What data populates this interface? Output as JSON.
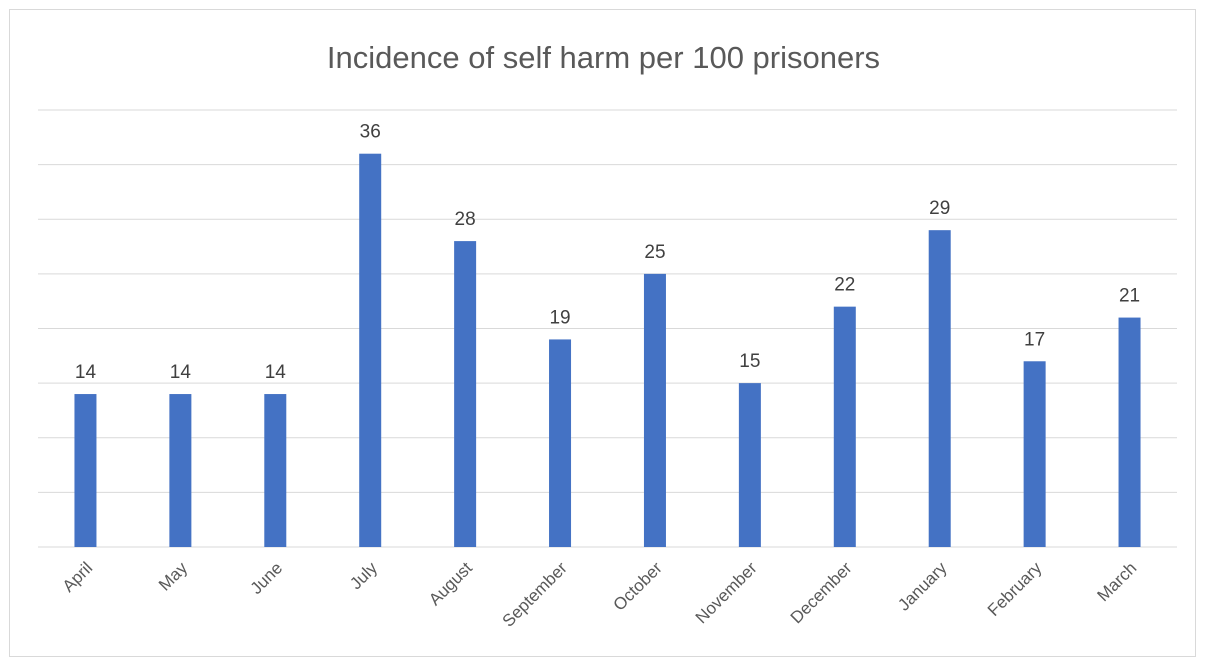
{
  "chart_data": {
    "type": "bar",
    "title": "Incidence of self harm per 100 prisoners",
    "xlabel": "",
    "ylabel": "",
    "categories": [
      "April",
      "May",
      "June",
      "July",
      "August",
      "September",
      "October",
      "November",
      "December",
      "January",
      "February",
      "March"
    ],
    "values": [
      14,
      14,
      14,
      36,
      28,
      19,
      25,
      15,
      22,
      29,
      17,
      21
    ],
    "ylim": [
      0,
      40
    ],
    "grid": true,
    "legend": "none",
    "bar_color": "#4472c4",
    "gridline_color": "#d9d9d9"
  }
}
